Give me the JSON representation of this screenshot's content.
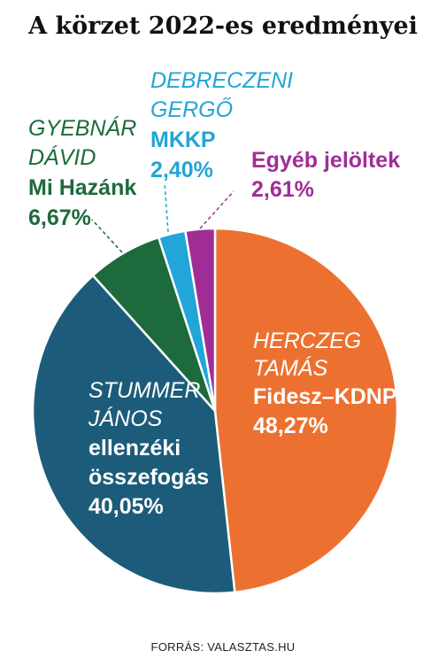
{
  "chart_data": {
    "type": "pie",
    "title": "A körzet 2022-es eredményei",
    "source": "FORRÁS: VALASZTAS.HU",
    "slices": [
      {
        "candidate_line1": "HERCZEG",
        "candidate_line2": "TAMÁS",
        "party_line1": "Fidesz–KDNP",
        "party_line2": "",
        "label": "48,27%",
        "value": 48.27,
        "color": "#ec7131",
        "label_color_candidate": "#ffffff",
        "label_color_party": "#ffffff"
      },
      {
        "candidate_line1": "STUMMER",
        "candidate_line2": "JÁNOS",
        "party_line1": "ellenzéki",
        "party_line2": "összefogás",
        "label": "40,05%",
        "value": 40.05,
        "color": "#1c5c7a",
        "label_color_candidate": "#ffffff",
        "label_color_party": "#ffffff"
      },
      {
        "candidate_line1": "GYEBNÁR",
        "candidate_line2": "DÁVID",
        "party_line1": "Mi Hazánk",
        "party_line2": "",
        "label": "6,67%",
        "value": 6.67,
        "color": "#1d6a3c",
        "label_color_candidate": "#1d6a3c",
        "label_color_party": "#1d6a3c"
      },
      {
        "candidate_line1": "DEBRECZENI",
        "candidate_line2": "GERGŐ",
        "party_line1": "MKKP",
        "party_line2": "",
        "label": "2,40%",
        "value": 2.4,
        "color": "#22a5d8",
        "label_color_candidate": "#22a5d8",
        "label_color_party": "#22a5d8"
      },
      {
        "candidate_line1": "",
        "candidate_line2": "",
        "party_line1": "Egyéb jelöltek",
        "party_line2": "",
        "label": "2,61%",
        "value": 2.61,
        "color": "#a02d96",
        "label_color_candidate": "#a02d96",
        "label_color_party": "#a02d96"
      }
    ]
  }
}
